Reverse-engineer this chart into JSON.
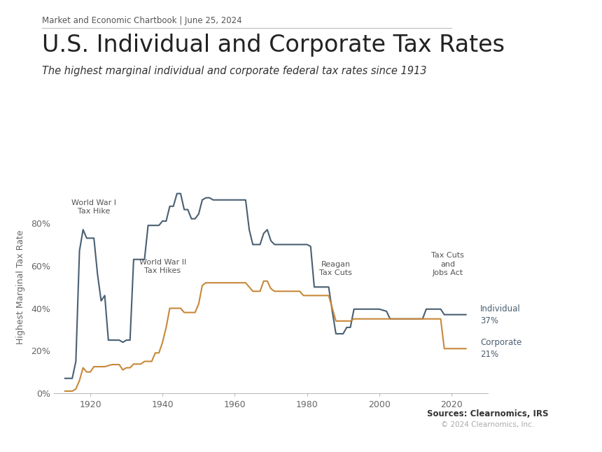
{
  "title": "U.S. Individual and Corporate Tax Rates",
  "subtitle": "The highest marginal individual and corporate federal tax rates since 1913",
  "header": "Market and Economic Chartbook | June 25, 2024",
  "ylabel": "Highest Marginal Tax Rate",
  "sources": "Sources: Clearnomics, IRS",
  "copyright": "© 2024 Clearnomics, Inc.",
  "individual_color": "#4a5f72",
  "corporate_color": "#c8883a",
  "individual_label": "Individual\n37%",
  "corporate_label": "Corporate\n21%",
  "individual_data": [
    [
      1913,
      7
    ],
    [
      1914,
      7
    ],
    [
      1915,
      7
    ],
    [
      1916,
      15
    ],
    [
      1917,
      67
    ],
    [
      1918,
      77
    ],
    [
      1919,
      73
    ],
    [
      1920,
      73
    ],
    [
      1921,
      73
    ],
    [
      1922,
      56
    ],
    [
      1923,
      43.5
    ],
    [
      1924,
      46
    ],
    [
      1925,
      25
    ],
    [
      1926,
      25
    ],
    [
      1927,
      25
    ],
    [
      1928,
      25
    ],
    [
      1929,
      24
    ],
    [
      1930,
      25
    ],
    [
      1931,
      25
    ],
    [
      1932,
      63
    ],
    [
      1933,
      63
    ],
    [
      1934,
      63
    ],
    [
      1935,
      63
    ],
    [
      1936,
      79
    ],
    [
      1937,
      79
    ],
    [
      1938,
      79
    ],
    [
      1939,
      79
    ],
    [
      1940,
      81.1
    ],
    [
      1941,
      81
    ],
    [
      1942,
      88
    ],
    [
      1943,
      88
    ],
    [
      1944,
      94
    ],
    [
      1945,
      94
    ],
    [
      1946,
      86.45
    ],
    [
      1947,
      86.45
    ],
    [
      1948,
      82.13
    ],
    [
      1949,
      82.13
    ],
    [
      1950,
      84.36
    ],
    [
      1951,
      91
    ],
    [
      1952,
      92
    ],
    [
      1953,
      92
    ],
    [
      1954,
      91
    ],
    [
      1955,
      91
    ],
    [
      1956,
      91
    ],
    [
      1957,
      91
    ],
    [
      1958,
      91
    ],
    [
      1959,
      91
    ],
    [
      1960,
      91
    ],
    [
      1961,
      91
    ],
    [
      1962,
      91
    ],
    [
      1963,
      91
    ],
    [
      1964,
      77
    ],
    [
      1965,
      70
    ],
    [
      1966,
      70
    ],
    [
      1967,
      70
    ],
    [
      1968,
      75.25
    ],
    [
      1969,
      77
    ],
    [
      1970,
      71.75
    ],
    [
      1971,
      70
    ],
    [
      1972,
      70
    ],
    [
      1973,
      70
    ],
    [
      1974,
      70
    ],
    [
      1975,
      70
    ],
    [
      1976,
      70
    ],
    [
      1977,
      70
    ],
    [
      1978,
      70
    ],
    [
      1979,
      70
    ],
    [
      1980,
      70
    ],
    [
      1981,
      69.125
    ],
    [
      1982,
      50
    ],
    [
      1983,
      50
    ],
    [
      1984,
      50
    ],
    [
      1985,
      50
    ],
    [
      1986,
      50
    ],
    [
      1987,
      38.5
    ],
    [
      1988,
      28
    ],
    [
      1989,
      28
    ],
    [
      1990,
      28
    ],
    [
      1991,
      31
    ],
    [
      1992,
      31
    ],
    [
      1993,
      39.6
    ],
    [
      1994,
      39.6
    ],
    [
      1995,
      39.6
    ],
    [
      1996,
      39.6
    ],
    [
      1997,
      39.6
    ],
    [
      1998,
      39.6
    ],
    [
      1999,
      39.6
    ],
    [
      2000,
      39.6
    ],
    [
      2001,
      39.1
    ],
    [
      2002,
      38.6
    ],
    [
      2003,
      35
    ],
    [
      2004,
      35
    ],
    [
      2005,
      35
    ],
    [
      2006,
      35
    ],
    [
      2007,
      35
    ],
    [
      2008,
      35
    ],
    [
      2009,
      35
    ],
    [
      2010,
      35
    ],
    [
      2011,
      35
    ],
    [
      2012,
      35
    ],
    [
      2013,
      39.6
    ],
    [
      2014,
      39.6
    ],
    [
      2015,
      39.6
    ],
    [
      2016,
      39.6
    ],
    [
      2017,
      39.6
    ],
    [
      2018,
      37
    ],
    [
      2019,
      37
    ],
    [
      2020,
      37
    ],
    [
      2021,
      37
    ],
    [
      2022,
      37
    ],
    [
      2023,
      37
    ],
    [
      2024,
      37
    ]
  ],
  "corporate_data": [
    [
      1913,
      1
    ],
    [
      1914,
      1
    ],
    [
      1915,
      1
    ],
    [
      1916,
      2
    ],
    [
      1917,
      6
    ],
    [
      1918,
      12
    ],
    [
      1919,
      10
    ],
    [
      1920,
      10
    ],
    [
      1921,
      12.5
    ],
    [
      1922,
      12.5
    ],
    [
      1923,
      12.5
    ],
    [
      1924,
      12.5
    ],
    [
      1925,
      13
    ],
    [
      1926,
      13.5
    ],
    [
      1927,
      13.5
    ],
    [
      1928,
      13.5
    ],
    [
      1929,
      11
    ],
    [
      1930,
      12
    ],
    [
      1931,
      12
    ],
    [
      1932,
      13.75
    ],
    [
      1933,
      13.75
    ],
    [
      1934,
      13.75
    ],
    [
      1935,
      15
    ],
    [
      1936,
      15
    ],
    [
      1937,
      15
    ],
    [
      1938,
      19
    ],
    [
      1939,
      19
    ],
    [
      1940,
      24
    ],
    [
      1941,
      31
    ],
    [
      1942,
      40
    ],
    [
      1943,
      40
    ],
    [
      1944,
      40
    ],
    [
      1945,
      40
    ],
    [
      1946,
      38
    ],
    [
      1947,
      38
    ],
    [
      1948,
      38
    ],
    [
      1949,
      38
    ],
    [
      1950,
      42
    ],
    [
      1951,
      50.75
    ],
    [
      1952,
      52
    ],
    [
      1953,
      52
    ],
    [
      1954,
      52
    ],
    [
      1955,
      52
    ],
    [
      1956,
      52
    ],
    [
      1957,
      52
    ],
    [
      1958,
      52
    ],
    [
      1959,
      52
    ],
    [
      1960,
      52
    ],
    [
      1961,
      52
    ],
    [
      1962,
      52
    ],
    [
      1963,
      52
    ],
    [
      1964,
      50
    ],
    [
      1965,
      48
    ],
    [
      1966,
      48
    ],
    [
      1967,
      48
    ],
    [
      1968,
      52.8
    ],
    [
      1969,
      52.8
    ],
    [
      1970,
      49.2
    ],
    [
      1971,
      48
    ],
    [
      1972,
      48
    ],
    [
      1973,
      48
    ],
    [
      1974,
      48
    ],
    [
      1975,
      48
    ],
    [
      1976,
      48
    ],
    [
      1977,
      48
    ],
    [
      1978,
      48
    ],
    [
      1979,
      46
    ],
    [
      1980,
      46
    ],
    [
      1981,
      46
    ],
    [
      1982,
      46
    ],
    [
      1983,
      46
    ],
    [
      1984,
      46
    ],
    [
      1985,
      46
    ],
    [
      1986,
      46
    ],
    [
      1987,
      40
    ],
    [
      1988,
      34
    ],
    [
      1989,
      34
    ],
    [
      1990,
      34
    ],
    [
      1991,
      34
    ],
    [
      1992,
      34
    ],
    [
      1993,
      35
    ],
    [
      1994,
      35
    ],
    [
      1995,
      35
    ],
    [
      1996,
      35
    ],
    [
      1997,
      35
    ],
    [
      1998,
      35
    ],
    [
      1999,
      35
    ],
    [
      2000,
      35
    ],
    [
      2001,
      35
    ],
    [
      2002,
      35
    ],
    [
      2003,
      35
    ],
    [
      2004,
      35
    ],
    [
      2005,
      35
    ],
    [
      2006,
      35
    ],
    [
      2007,
      35
    ],
    [
      2008,
      35
    ],
    [
      2009,
      35
    ],
    [
      2010,
      35
    ],
    [
      2011,
      35
    ],
    [
      2012,
      35
    ],
    [
      2013,
      35
    ],
    [
      2014,
      35
    ],
    [
      2015,
      35
    ],
    [
      2016,
      35
    ],
    [
      2017,
      35
    ],
    [
      2018,
      21
    ],
    [
      2019,
      21
    ],
    [
      2020,
      21
    ],
    [
      2021,
      21
    ],
    [
      2022,
      21
    ],
    [
      2023,
      21
    ],
    [
      2024,
      21
    ]
  ],
  "xlim": [
    1910,
    2030
  ],
  "ylim": [
    0,
    100
  ],
  "yticks": [
    0,
    20,
    40,
    60,
    80
  ],
  "ytick_labels": [
    "0%",
    "20%",
    "40%",
    "60%",
    "80%"
  ],
  "xticks": [
    1920,
    1940,
    1960,
    1980,
    2000,
    2020
  ],
  "background_color": "#ffffff",
  "line_width": 1.5,
  "ann_ww1_x": 1921,
  "ann_ww1_y": 84,
  "ann_ww2_x": 1940,
  "ann_ww2_y": 56,
  "ann_reagan_x": 1988,
  "ann_reagan_y": 55,
  "ann_tcja_x": 2019,
  "ann_tcja_y": 55
}
